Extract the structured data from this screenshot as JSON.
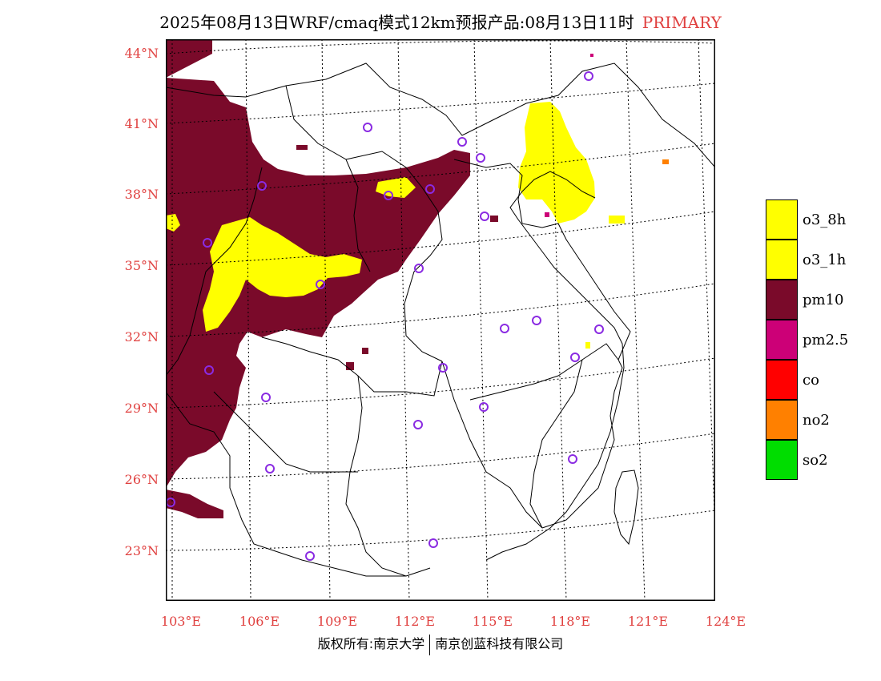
{
  "title": {
    "main": "2025年08月13日WRF/cmaq模式12km预报产品:08月13日11时",
    "tag": "PRIMARY"
  },
  "lat_labels": [
    "44°N",
    "41°N",
    "38°N",
    "35°N",
    "32°N",
    "29°N",
    "26°N",
    "23°N"
  ],
  "lon_labels": [
    "103°E",
    "106°E",
    "109°E",
    "112°E",
    "115°E",
    "118°E",
    "121°E",
    "124°E"
  ],
  "legend": [
    {
      "label": "o3_8h",
      "color": "#ffff00"
    },
    {
      "label": "o3_1h",
      "color": "#ffff00"
    },
    {
      "label": "pm10",
      "color": "#7a0a2a"
    },
    {
      "label": "pm2.5",
      "color": "#cc0077"
    },
    {
      "label": "co",
      "color": "#ff0000"
    },
    {
      "label": "no2",
      "color": "#ff8000"
    },
    {
      "label": "so2",
      "color": "#00dd00"
    }
  ],
  "footer": {
    "left": "版权所有:南京大学",
    "right": "南京创蓝科技有限公司"
  }
}
